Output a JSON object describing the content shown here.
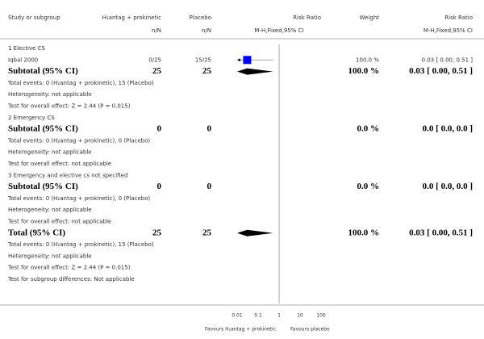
{
  "header": {
    "study_col": "Study or subgroup",
    "treatment": "H₂antag + prokinetic",
    "treatment_unit": "n/N",
    "control": "Placebo",
    "control_unit": "n/N",
    "plot_col": "Risk Ratio",
    "plot_unit": "M-H,Fixed,95% CI",
    "weight": "Weight",
    "effect_col": "Risk Ratio",
    "effect_unit": "M-H,Fixed,95% CI"
  },
  "groups": [
    {
      "title": "1 Elective CS",
      "studies": [
        {
          "label": "Iqbal 2000",
          "treatment": "0/25",
          "control": "15/25",
          "weight": "100.0 %",
          "effect": "0.03 [ 0.00, 0.51 ]",
          "rr": 0.03,
          "ci": [
            0,
            0.51
          ]
        }
      ],
      "subtotal": {
        "label": "Subtotal (95% CI)",
        "treatment": 25,
        "control": 25,
        "weight": "100.0 %",
        "effect": "0.03 [ 0.00, 0.51 ]",
        "rr": 0.03,
        "ci": [
          0,
          0.51
        ]
      },
      "notes": [
        "Total events: 0 (H₂antag + prokinetic), 15 (Placebo)",
        "Heterogeneity: not applicable",
        "Test for overall effect: Z = 2.44 (P = 0.015)"
      ]
    },
    {
      "title": "2 Emergency CS",
      "studies": [],
      "subtotal": {
        "label": "Subtotal (95% CI)",
        "treatment": 0,
        "control": 0,
        "weight": "0.0 %",
        "effect": "0.0 [ 0.0, 0.0 ]"
      },
      "notes": [
        "Total events: 0 (H₂antag + prokinetic), 0 (Placebo)",
        "Heterogeneity: not applicable",
        "Test for overall effect: not applicable"
      ]
    },
    {
      "title": "3 Emergency and elective cs not specified",
      "studies": [],
      "subtotal": {
        "label": "Subtotal (95% CI)",
        "treatment": 0,
        "control": 0,
        "weight": "0.0 %",
        "effect": "0.0 [ 0.0, 0.0 ]"
      },
      "notes": [
        "Total events: 0 (H₂antag + prokinetic), 0 (Placebo)",
        "Heterogeneity: not applicable",
        "Test for overall effect: not applicable"
      ]
    }
  ],
  "total": {
    "label": "Total (95% CI)",
    "treatment": 25,
    "control": 25,
    "weight": "100.0 %",
    "effect": "0.03 [ 0.00, 0.51 ]",
    "rr": 0.03,
    "ci": [
      0,
      0.51
    ]
  },
  "total_notes": [
    "Total events: 0 (H₂antag + prokinetic), 15 (Placebo)",
    "Heterogeneity: not applicable",
    "Test for overall effect: Z = 2.44 (P = 0.015)",
    "Test for subgroup differences: Not applicable"
  ],
  "axis": {
    "log": true,
    "xlim": [
      0.01,
      100
    ],
    "xticks": [
      0.01,
      0.1,
      1,
      10,
      100
    ],
    "left_label": "Favours H₂antag + prokinetic",
    "right_label": "Favours placebo"
  },
  "colors": {
    "square": "#0000ff",
    "diamond": "#000000"
  }
}
